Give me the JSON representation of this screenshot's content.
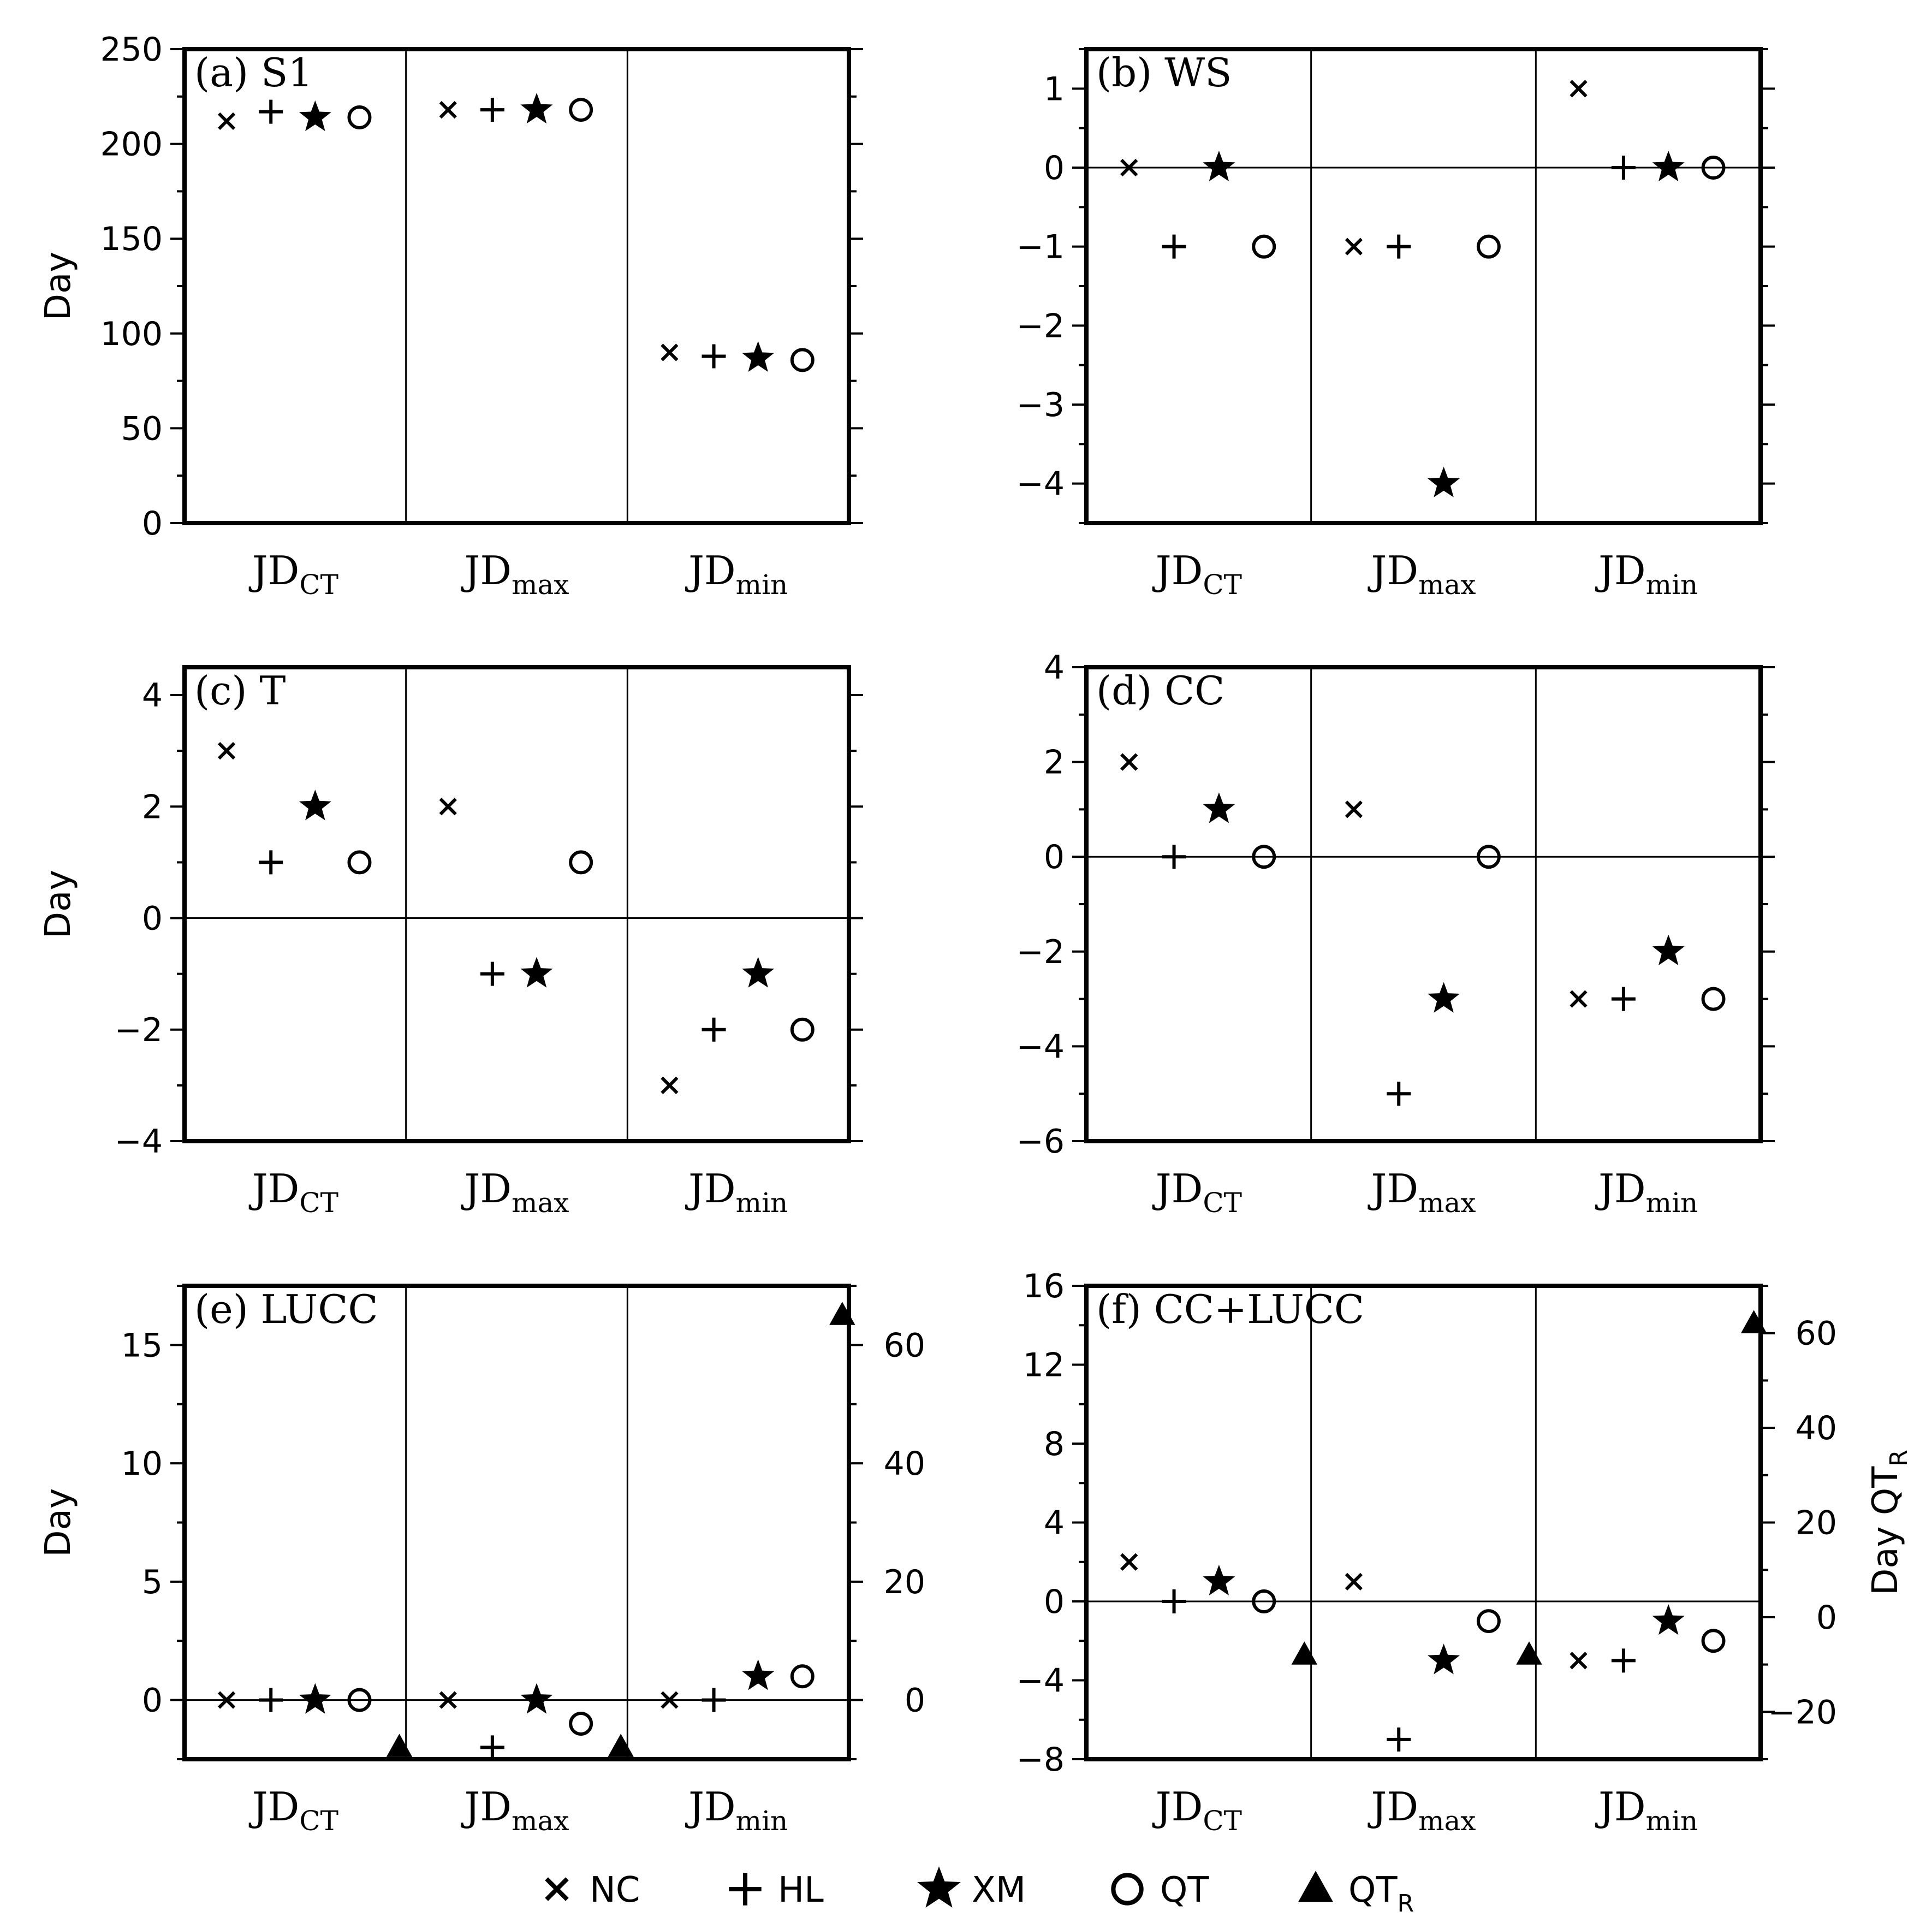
{
  "chart_data": [
    {
      "type": "scatter",
      "label": "(a) S1",
      "ylabel": "Day",
      "ylim": [
        0,
        250
      ],
      "yticks": [
        0,
        50,
        100,
        150,
        200,
        250
      ],
      "categories": [
        "JD_CT",
        "JD_max",
        "JD_min"
      ],
      "zero_line": false,
      "series": [
        {
          "name": "NC",
          "values": [
            212,
            218,
            90
          ]
        },
        {
          "name": "HL",
          "values": [
            217,
            218,
            88
          ]
        },
        {
          "name": "XM",
          "values": [
            214,
            218,
            87
          ]
        },
        {
          "name": "QT",
          "values": [
            214,
            218,
            86
          ]
        }
      ]
    },
    {
      "type": "scatter",
      "label": "(b) WS",
      "ylabel": "",
      "ylim": [
        -4.5,
        1.5
      ],
      "yticks": [
        -4,
        -3,
        -2,
        -1,
        0,
        1
      ],
      "categories": [
        "JD_CT",
        "JD_max",
        "JD_min"
      ],
      "zero_line": true,
      "series": [
        {
          "name": "NC",
          "values": [
            0,
            -1,
            1
          ]
        },
        {
          "name": "HL",
          "values": [
            -1,
            -1,
            0
          ]
        },
        {
          "name": "XM",
          "values": [
            0,
            -4,
            0
          ]
        },
        {
          "name": "QT",
          "values": [
            -1,
            -1,
            0
          ]
        }
      ]
    },
    {
      "type": "scatter",
      "label": "(c) T",
      "ylabel": "Day",
      "ylim": [
        -4,
        4.5
      ],
      "yticks": [
        -4,
        -2,
        0,
        2,
        4
      ],
      "categories": [
        "JD_CT",
        "JD_max",
        "JD_min"
      ],
      "zero_line": true,
      "series": [
        {
          "name": "NC",
          "values": [
            3,
            2,
            -3
          ]
        },
        {
          "name": "HL",
          "values": [
            1,
            -1,
            -2
          ]
        },
        {
          "name": "XM",
          "values": [
            2,
            -1,
            -1
          ]
        },
        {
          "name": "QT",
          "values": [
            1,
            1,
            -2
          ]
        }
      ]
    },
    {
      "type": "scatter",
      "label": "(d) CC",
      "ylabel": "",
      "ylim": [
        -6,
        4
      ],
      "yticks": [
        -6,
        -4,
        -2,
        0,
        2,
        4
      ],
      "categories": [
        "JD_CT",
        "JD_max",
        "JD_min"
      ],
      "zero_line": true,
      "series": [
        {
          "name": "NC",
          "values": [
            2,
            1,
            -3
          ]
        },
        {
          "name": "HL",
          "values": [
            0,
            -5,
            -3
          ]
        },
        {
          "name": "XM",
          "values": [
            1,
            -3,
            -2
          ]
        },
        {
          "name": "QT",
          "values": [
            0,
            0,
            -3
          ]
        }
      ]
    },
    {
      "type": "scatter",
      "label": "(e) LUCC",
      "ylabel": "Day",
      "ylim": [
        -2.5,
        17.5
      ],
      "yticks": [
        0,
        5,
        10,
        15
      ],
      "y2lim": [
        -10,
        70
      ],
      "y2ticks": [
        0,
        20,
        40,
        60
      ],
      "y2label": "",
      "categories": [
        "JD_CT",
        "JD_max",
        "JD_min"
      ],
      "zero_line": true,
      "series": [
        {
          "name": "NC",
          "values": [
            0,
            0,
            0
          ]
        },
        {
          "name": "HL",
          "values": [
            0,
            -2,
            0
          ]
        },
        {
          "name": "XM",
          "values": [
            0,
            0,
            1
          ]
        },
        {
          "name": "QT",
          "values": [
            0,
            -1,
            1
          ]
        },
        {
          "name": "QT_R",
          "axis": "right",
          "values": [
            -8,
            -8,
            65
          ]
        }
      ]
    },
    {
      "type": "scatter",
      "label": "(f) CC+LUCC",
      "ylabel": "",
      "ylim": [
        -8,
        16
      ],
      "yticks": [
        -8,
        -4,
        0,
        4,
        8,
        12,
        16
      ],
      "y2lim": [
        -30,
        70
      ],
      "y2ticks": [
        -20,
        0,
        20,
        40,
        60
      ],
      "y2label": "Day QT_R",
      "categories": [
        "JD_CT",
        "JD_max",
        "JD_min"
      ],
      "zero_line": true,
      "series": [
        {
          "name": "NC",
          "values": [
            2,
            1,
            -3
          ]
        },
        {
          "name": "HL",
          "values": [
            0,
            -7,
            -3
          ]
        },
        {
          "name": "XM",
          "values": [
            1,
            -3,
            -1
          ]
        },
        {
          "name": "QT",
          "values": [
            0,
            -1,
            -2
          ]
        },
        {
          "name": "QT_R",
          "axis": "right",
          "values": [
            -8,
            -8,
            62
          ]
        }
      ]
    }
  ],
  "legend": {
    "placement": "bottom-center",
    "items": [
      {
        "name": "NC",
        "marker": "x-mark"
      },
      {
        "name": "HL",
        "marker": "plus-mark"
      },
      {
        "name": "XM",
        "marker": "star-mark"
      },
      {
        "name": "QT",
        "marker": "circle-mark"
      },
      {
        "name": "QT_R",
        "marker": "triangle-mark"
      }
    ]
  },
  "marker_color": "#000000"
}
